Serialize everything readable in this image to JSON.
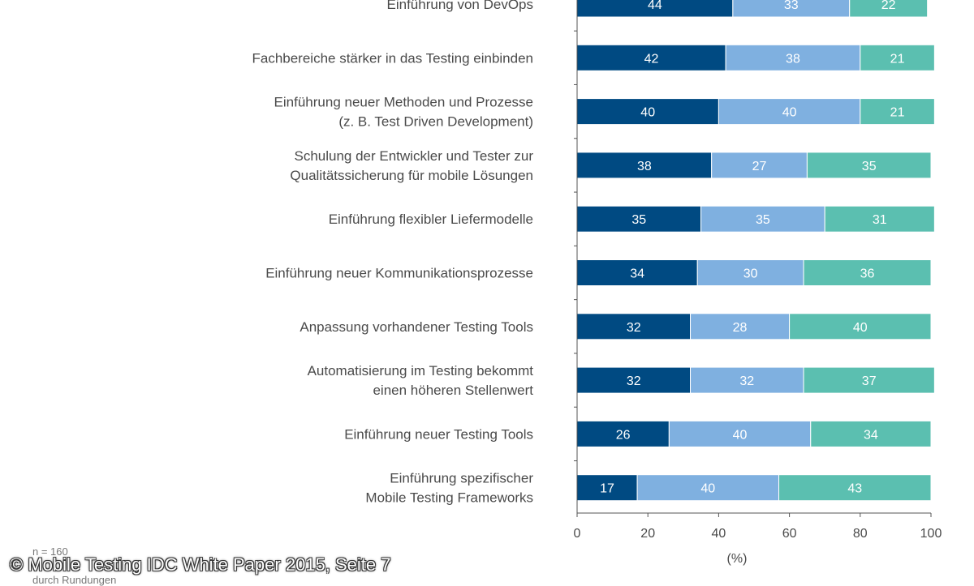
{
  "chart_data": {
    "type": "bar",
    "orientation": "horizontal-stacked",
    "categories": [
      "Einführung von DevOps",
      "Fachbereiche stärker in das Testing einbinden",
      "Einführung neuer Methoden und Prozesse\n(z. B. Test Driven Development)",
      "Schulung der Entwickler und Tester zur\nQualitätssicherung für mobile Lösungen",
      "Einführung flexibler Liefermodelle",
      "Einführung neuer Kommunikationsprozesse",
      "Anpassung vorhandener Testing Tools",
      "Automatisierung im Testing bekommt\neinen höheren Stellenwert",
      "Einführung neuer Testing Tools",
      "Einführung spezifischer\nMobile Testing Frameworks"
    ],
    "series": [
      {
        "color": "#004a82",
        "values": [
          44,
          42,
          40,
          38,
          35,
          34,
          32,
          32,
          26,
          17
        ]
      },
      {
        "color": "#7fb0e0",
        "values": [
          33,
          38,
          40,
          27,
          35,
          30,
          28,
          32,
          40,
          40
        ]
      },
      {
        "color": "#5bbfb0",
        "values": [
          22,
          21,
          21,
          35,
          31,
          36,
          40,
          37,
          34,
          43
        ]
      }
    ],
    "xlim": [
      0,
      100
    ],
    "xticks": [
      0,
      20,
      40,
      60,
      80,
      100
    ],
    "xlabel": "(%)",
    "grid": false
  },
  "footnote": {
    "line1": "n = 160",
    "line2": "durch Rundungen"
  },
  "copyright": "© Mobile Testing IDC White Paper 2015, Seite 7"
}
